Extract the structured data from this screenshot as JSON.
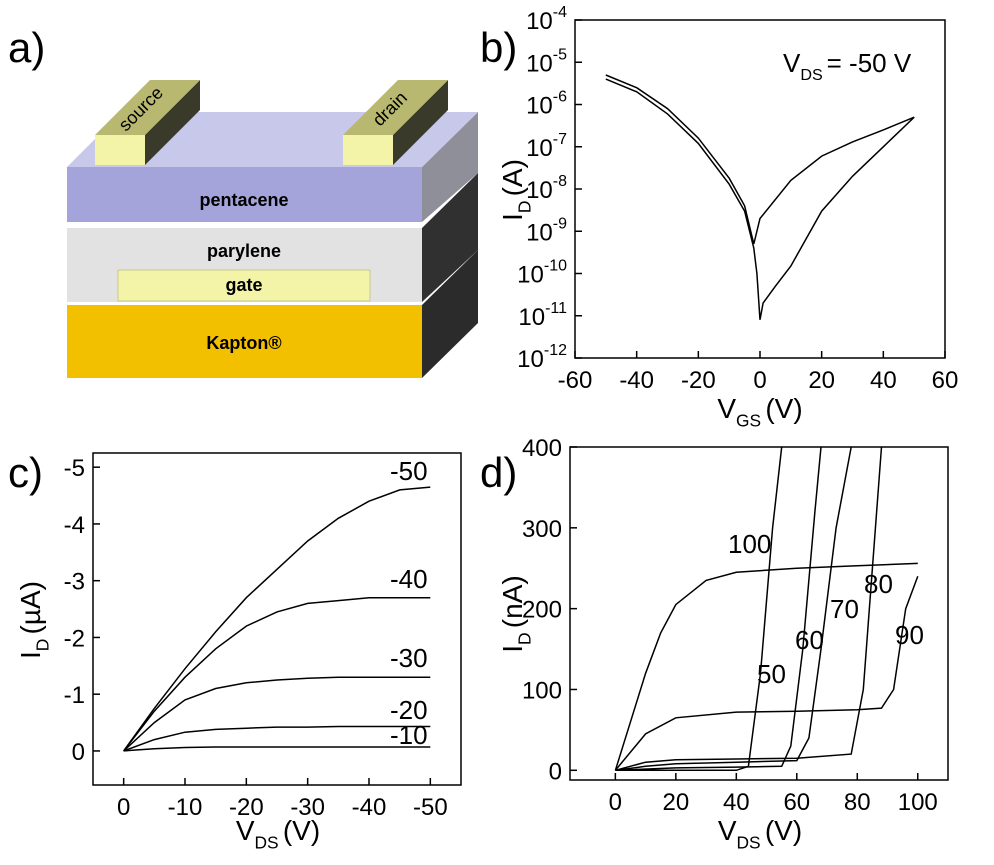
{
  "diagram": {
    "panel_label": "a)",
    "labels": {
      "source": "source",
      "drain": "drain",
      "pentacene": "pentacene",
      "parylene": "parylene",
      "gate": "gate",
      "substrate": "Kapton®"
    }
  },
  "chart_data": [
    {
      "type": "line",
      "panel_label": "b)",
      "log_y": true,
      "annotation": [
        "V",
        "DS",
        "= -50 V"
      ],
      "xlabel": [
        "V",
        "GS",
        "(V)"
      ],
      "ylabel": [
        "I",
        "D",
        "(A)"
      ],
      "xlim": [
        -60,
        60
      ],
      "xticks": [
        -60,
        -40,
        -20,
        0,
        20,
        40,
        60
      ],
      "ylim": [
        1e-12,
        0.0001
      ],
      "yticks": [
        {
          "value": 1e-12,
          "label": "10-12"
        },
        {
          "value": 1e-11,
          "label": "10-11"
        },
        {
          "value": 1e-10,
          "label": "10-10"
        },
        {
          "value": 1e-09,
          "label": "10-9"
        },
        {
          "value": 1e-08,
          "label": "10-8"
        },
        {
          "value": 1e-07,
          "label": "10-7"
        },
        {
          "value": 1e-06,
          "label": "10-6"
        },
        {
          "value": 1e-05,
          "label": "10-5"
        },
        {
          "value": 0.0001,
          "label": "10-4"
        }
      ],
      "series": [
        {
          "color": "#000000",
          "x": [
            -50,
            -40,
            -30,
            -20,
            -10,
            -5,
            -2,
            0,
            10,
            20,
            30,
            40,
            50
          ],
          "values": [
            5e-06,
            2.5e-06,
            8e-07,
            1.6e-07,
            1.8e-08,
            4e-09,
            5e-10,
            2e-09,
            1.6e-08,
            6e-08,
            1.3e-07,
            2.5e-07,
            5e-07
          ]
        },
        {
          "color": "#000000",
          "x": [
            -50,
            -40,
            -30,
            -20,
            -10,
            -5,
            -2,
            -1,
            0,
            1,
            5,
            10,
            20,
            30,
            40,
            50
          ],
          "values": [
            4e-06,
            2e-06,
            6e-07,
            1.2e-07,
            1.3e-08,
            3e-09,
            4e-10,
            1e-10,
            8e-12,
            2e-11,
            5e-11,
            1.5e-10,
            3e-09,
            2e-08,
            1e-07,
            5e-07
          ]
        }
      ]
    },
    {
      "type": "line",
      "panel_label": "c)",
      "xlabel": [
        "V",
        "DS",
        "(V)"
      ],
      "ylabel": [
        "I",
        "D",
        "(µA)"
      ],
      "xlim": [
        5,
        -55
      ],
      "xticks": [
        0,
        -10,
        -20,
        -30,
        -40,
        -50
      ],
      "ylim": [
        0.6,
        -5.25
      ],
      "yticks": [
        0,
        -1,
        -2,
        -3,
        -4,
        -5
      ],
      "x": [
        0,
        -5,
        -10,
        -15,
        -20,
        -25,
        -30,
        -35,
        -40,
        -45,
        -50
      ],
      "series": [
        {
          "name": "-50",
          "color": "#000000",
          "values": [
            0,
            -0.75,
            -1.45,
            -2.1,
            -2.7,
            -3.2,
            -3.7,
            -4.1,
            -4.4,
            -4.6,
            -4.65
          ]
        },
        {
          "name": "-40",
          "color": "#000000",
          "values": [
            0,
            -0.7,
            -1.3,
            -1.8,
            -2.2,
            -2.45,
            -2.6,
            -2.65,
            -2.7,
            -2.7,
            -2.7
          ]
        },
        {
          "name": "-30",
          "color": "#000000",
          "values": [
            0,
            -0.5,
            -0.9,
            -1.1,
            -1.2,
            -1.25,
            -1.28,
            -1.3,
            -1.3,
            -1.3,
            -1.3
          ]
        },
        {
          "name": "-20",
          "color": "#000000",
          "values": [
            0,
            -0.2,
            -0.33,
            -0.38,
            -0.4,
            -0.42,
            -0.42,
            -0.43,
            -0.43,
            -0.43,
            -0.43
          ]
        },
        {
          "name": "-10",
          "color": "#000000",
          "values": [
            0,
            -0.04,
            -0.06,
            -0.07,
            -0.07,
            -0.07,
            -0.07,
            -0.07,
            -0.07,
            -0.07,
            -0.07
          ]
        }
      ]
    },
    {
      "type": "line",
      "panel_label": "d)",
      "xlabel": [
        "V",
        "DS",
        "(V)"
      ],
      "ylabel": [
        "I",
        "D",
        "(nA)"
      ],
      "xlim": [
        -15,
        110
      ],
      "xticks": [
        0,
        20,
        40,
        60,
        80,
        100
      ],
      "ylim": [
        -12,
        400
      ],
      "yticks": [
        0,
        100,
        200,
        300,
        400
      ],
      "series": [
        {
          "name": "100",
          "color": "#000000",
          "x": [
            0,
            5,
            10,
            15,
            20,
            30,
            40,
            60,
            80,
            100
          ],
          "values": [
            0,
            60,
            120,
            170,
            205,
            235,
            245,
            250,
            253,
            256
          ]
        },
        {
          "name": "90",
          "color": "#000000",
          "x": [
            0,
            10,
            20,
            40,
            60,
            80,
            88,
            92,
            96,
            100
          ],
          "values": [
            0,
            45,
            65,
            72,
            73,
            75,
            77,
            100,
            200,
            240
          ]
        },
        {
          "name": "80",
          "color": "#000000",
          "x": [
            0,
            10,
            20,
            40,
            60,
            78,
            82,
            85,
            88
          ],
          "values": [
            0,
            10,
            13,
            14,
            15,
            20,
            100,
            250,
            400
          ]
        },
        {
          "name": "70",
          "color": "#000000",
          "x": [
            0,
            10,
            20,
            40,
            60,
            64,
            68,
            73,
            78
          ],
          "values": [
            0,
            5,
            8,
            10,
            12,
            40,
            150,
            300,
            400
          ]
        },
        {
          "name": "60",
          "color": "#000000",
          "x": [
            0,
            20,
            40,
            55,
            58,
            62,
            66,
            68
          ],
          "values": [
            0,
            3,
            4,
            5,
            30,
            150,
            320,
            400
          ]
        },
        {
          "name": "50",
          "color": "#000000",
          "x": [
            0,
            20,
            40,
            44,
            48,
            52,
            55
          ],
          "values": [
            0,
            0,
            0,
            5,
            120,
            300,
            400
          ]
        }
      ]
    }
  ]
}
